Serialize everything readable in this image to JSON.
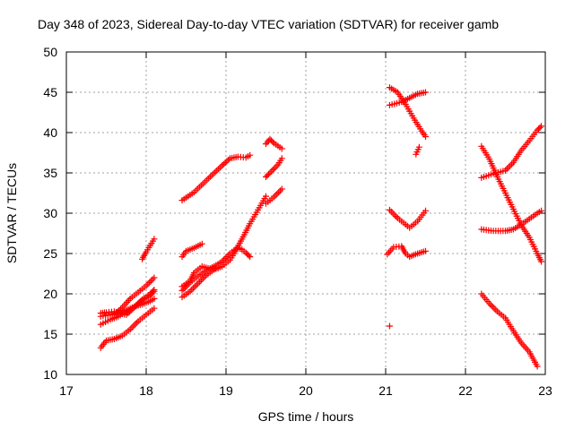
{
  "chart_data": {
    "type": "scatter",
    "title": "Day 348 of 2023, Sidereal Day-to-day VTEC variation (SDTVAR) for receiver gamb",
    "xlabel": "GPS time / hours",
    "ylabel": "SDTVAR / TECUs",
    "xlim": [
      17,
      23
    ],
    "ylim": [
      10,
      50
    ],
    "x_ticks": [
      17,
      18,
      19,
      20,
      21,
      22,
      23
    ],
    "y_ticks": [
      10,
      15,
      20,
      25,
      30,
      35,
      40,
      45,
      50
    ],
    "grid": true,
    "legend": "none",
    "marker": "plus",
    "color": "#ff0000",
    "tracks": [
      {
        "points": [
          [
            17.43,
            13.3
          ],
          [
            17.5,
            14.2
          ],
          [
            17.6,
            14.4
          ],
          [
            17.7,
            14.8
          ],
          [
            17.8,
            15.6
          ],
          [
            17.9,
            16.6
          ],
          [
            18.0,
            17.4
          ],
          [
            18.1,
            18.2
          ]
        ]
      },
      {
        "points": [
          [
            17.43,
            16.2
          ],
          [
            17.55,
            16.8
          ],
          [
            17.65,
            17.2
          ],
          [
            17.75,
            17.8
          ],
          [
            17.85,
            18.4
          ],
          [
            17.95,
            19.2
          ],
          [
            18.05,
            19.8
          ],
          [
            18.1,
            20.3
          ]
        ]
      },
      {
        "points": [
          [
            17.43,
            17.2
          ],
          [
            17.55,
            17.4
          ],
          [
            17.65,
            17.6
          ],
          [
            17.75,
            18.0
          ],
          [
            17.85,
            18.4
          ],
          [
            17.95,
            18.7
          ],
          [
            18.05,
            19.1
          ],
          [
            18.1,
            19.4
          ]
        ]
      },
      {
        "points": [
          [
            17.43,
            17.6
          ],
          [
            17.5,
            17.7
          ],
          [
            17.6,
            17.8
          ],
          [
            17.7,
            17.5
          ],
          [
            17.75,
            17.4
          ],
          [
            17.85,
            18.3
          ],
          [
            17.95,
            19.3
          ],
          [
            18.05,
            20.0
          ],
          [
            18.1,
            20.5
          ]
        ]
      },
      {
        "points": [
          [
            17.6,
            17.4
          ],
          [
            17.7,
            18.3
          ],
          [
            17.8,
            19.4
          ],
          [
            17.9,
            20.2
          ],
          [
            18.0,
            21.0
          ],
          [
            18.1,
            22.0
          ]
        ]
      },
      {
        "points": [
          [
            17.95,
            24.3
          ],
          [
            18.0,
            25.2
          ],
          [
            18.05,
            26.0
          ],
          [
            18.1,
            26.8
          ]
        ]
      },
      {
        "points": [
          [
            18.45,
            19.6
          ],
          [
            18.55,
            20.3
          ],
          [
            18.65,
            21.3
          ],
          [
            18.75,
            22.3
          ],
          [
            18.85,
            23.0
          ],
          [
            18.95,
            23.4
          ],
          [
            19.05,
            24.2
          ],
          [
            19.1,
            25.0
          ],
          [
            19.2,
            26.8
          ],
          [
            19.3,
            28.7
          ],
          [
            19.4,
            30.4
          ],
          [
            19.5,
            32.1
          ]
        ]
      },
      {
        "points": [
          [
            18.45,
            20.4
          ],
          [
            18.55,
            21.4
          ],
          [
            18.65,
            22.2
          ],
          [
            18.75,
            22.9
          ],
          [
            18.85,
            23.4
          ],
          [
            18.95,
            24.0
          ],
          [
            19.05,
            25.0
          ],
          [
            19.1,
            25.4
          ],
          [
            19.15,
            25.7
          ],
          [
            19.2,
            25.5
          ],
          [
            19.25,
            25.1
          ],
          [
            19.3,
            24.6
          ]
        ]
      },
      {
        "points": [
          [
            18.45,
            20.9
          ],
          [
            18.55,
            21.6
          ],
          [
            18.6,
            22.6
          ],
          [
            18.7,
            23.4
          ],
          [
            18.8,
            23.1
          ],
          [
            18.9,
            23.2
          ]
        ]
      },
      {
        "points": [
          [
            18.45,
            24.6
          ],
          [
            18.5,
            25.3
          ],
          [
            18.6,
            25.7
          ],
          [
            18.7,
            26.2
          ]
        ]
      },
      {
        "points": [
          [
            18.45,
            31.6
          ],
          [
            18.6,
            32.6
          ],
          [
            18.8,
            34.5
          ],
          [
            18.95,
            35.9
          ],
          [
            19.05,
            36.8
          ],
          [
            19.15,
            37.0
          ],
          [
            19.25,
            36.9
          ],
          [
            19.3,
            37.2
          ]
        ]
      },
      {
        "points": [
          [
            19.5,
            34.5
          ],
          [
            19.55,
            35.0
          ],
          [
            19.65,
            36.0
          ],
          [
            19.7,
            36.8
          ]
        ]
      },
      {
        "points": [
          [
            19.5,
            31.2
          ],
          [
            19.6,
            32.0
          ],
          [
            19.7,
            33.0
          ]
        ]
      },
      {
        "points": [
          [
            19.5,
            38.6
          ],
          [
            19.55,
            39.2
          ],
          [
            19.6,
            38.7
          ],
          [
            19.7,
            38.0
          ]
        ]
      },
      {
        "points": [
          [
            21.05,
            16.0
          ]
        ]
      },
      {
        "points": [
          [
            21.02,
            24.9
          ],
          [
            21.1,
            25.8
          ],
          [
            21.2,
            25.9
          ],
          [
            21.25,
            25.0
          ],
          [
            21.3,
            24.6
          ],
          [
            21.4,
            25.0
          ],
          [
            21.5,
            25.3
          ]
        ]
      },
      {
        "points": [
          [
            21.05,
            30.4
          ],
          [
            21.15,
            29.4
          ],
          [
            21.3,
            28.2
          ],
          [
            21.4,
            29.0
          ],
          [
            21.5,
            30.3
          ]
        ]
      },
      {
        "points": [
          [
            21.05,
            43.4
          ],
          [
            21.2,
            43.8
          ],
          [
            21.3,
            44.3
          ],
          [
            21.4,
            44.8
          ],
          [
            21.5,
            45.0
          ]
        ]
      },
      {
        "points": [
          [
            21.05,
            45.6
          ],
          [
            21.15,
            45.0
          ],
          [
            21.25,
            43.5
          ],
          [
            21.35,
            41.8
          ],
          [
            21.45,
            40.2
          ],
          [
            21.5,
            39.5
          ]
        ]
      },
      {
        "points": [
          [
            21.38,
            37.3
          ],
          [
            21.42,
            38.2
          ]
        ]
      },
      {
        "points": [
          [
            22.2,
            20.0
          ],
          [
            22.3,
            18.8
          ],
          [
            22.4,
            17.8
          ],
          [
            22.5,
            17.0
          ],
          [
            22.6,
            15.4
          ],
          [
            22.7,
            13.9
          ],
          [
            22.8,
            12.8
          ],
          [
            22.9,
            11.0
          ]
        ]
      },
      {
        "points": [
          [
            22.2,
            28.0
          ],
          [
            22.35,
            27.8
          ],
          [
            22.5,
            27.8
          ],
          [
            22.6,
            28.0
          ],
          [
            22.7,
            28.6
          ],
          [
            22.8,
            29.3
          ],
          [
            22.9,
            30.0
          ],
          [
            22.95,
            30.3
          ]
        ]
      },
      {
        "points": [
          [
            22.2,
            34.4
          ],
          [
            22.35,
            34.9
          ],
          [
            22.5,
            35.3
          ],
          [
            22.6,
            36.3
          ],
          [
            22.7,
            37.8
          ],
          [
            22.8,
            39.0
          ],
          [
            22.9,
            40.3
          ],
          [
            22.95,
            40.8
          ]
        ]
      },
      {
        "points": [
          [
            22.2,
            38.3
          ],
          [
            22.3,
            36.7
          ],
          [
            22.4,
            34.5
          ],
          [
            22.5,
            32.5
          ],
          [
            22.6,
            30.5
          ],
          [
            22.7,
            28.5
          ],
          [
            22.8,
            27.0
          ],
          [
            22.9,
            25.0
          ],
          [
            22.95,
            24.0
          ]
        ]
      }
    ]
  }
}
